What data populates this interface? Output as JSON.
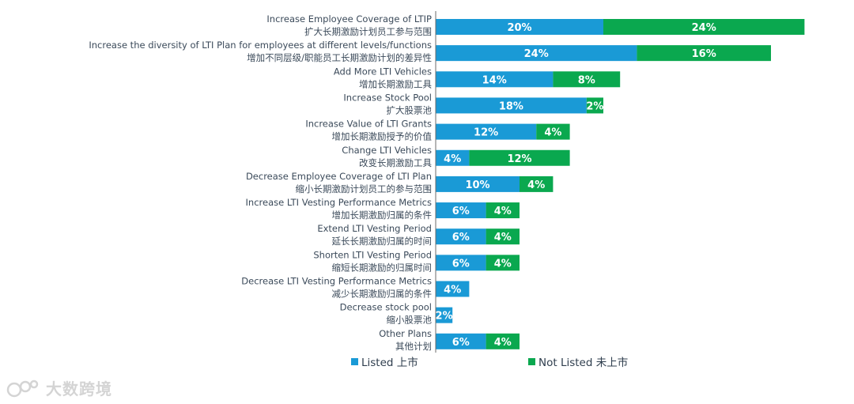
{
  "chart_data": {
    "type": "bar",
    "orientation": "horizontal",
    "stacked": true,
    "categories": [
      {
        "en": "Increase Employee Coverage of LTIP",
        "zh": "扩大长期激励计划员工参与范围"
      },
      {
        "en": "Increase the diversity of LTI Plan for employees at different levels/functions",
        "zh": "增加不同层级/职能员工长期激励计划的差异性"
      },
      {
        "en": "Add More LTI Vehicles",
        "zh": "增加长期激励工具"
      },
      {
        "en": "Increase Stock Pool",
        "zh": "扩大股票池"
      },
      {
        "en": "Increase Value of LTI Grants",
        "zh": "增加长期激励授予的价值"
      },
      {
        "en": "Change LTI Vehicles",
        "zh": "改变长期激励工具"
      },
      {
        "en": "Decrease Employee Coverage of LTI Plan",
        "zh": "缩小长期激励计划员工的参与范围"
      },
      {
        "en": "Increase LTI Vesting Performance Metrics",
        "zh": "增加长期激励归属的条件"
      },
      {
        "en": "Extend LTI Vesting Period",
        "zh": "延长长期激励归属的时间"
      },
      {
        "en": "Shorten LTI Vesting Period",
        "zh": "缩短长期激励的归属时间"
      },
      {
        "en": "Decrease LTI Vesting Performance Metrics",
        "zh": "减少长期激励归属的条件"
      },
      {
        "en": "Decrease  stock pool",
        "zh": "缩小股票池"
      },
      {
        "en": "Other Plans",
        "zh": "其他计划"
      }
    ],
    "series": [
      {
        "name": "Listed 上市",
        "color": "#1a9ad6",
        "values": [
          20,
          24,
          14,
          18,
          12,
          4,
          10,
          6,
          6,
          6,
          4,
          2,
          6
        ]
      },
      {
        "name": "Not Listed 未上市",
        "color": "#0aa84f",
        "values": [
          24,
          16,
          8,
          2,
          4,
          12,
          4,
          4,
          4,
          4,
          0,
          0,
          4
        ]
      }
    ],
    "unit": "%",
    "title": "",
    "xlabel": "",
    "ylabel": "",
    "legend_position": "bottom"
  },
  "watermark": {
    "text": "大数跨境"
  }
}
